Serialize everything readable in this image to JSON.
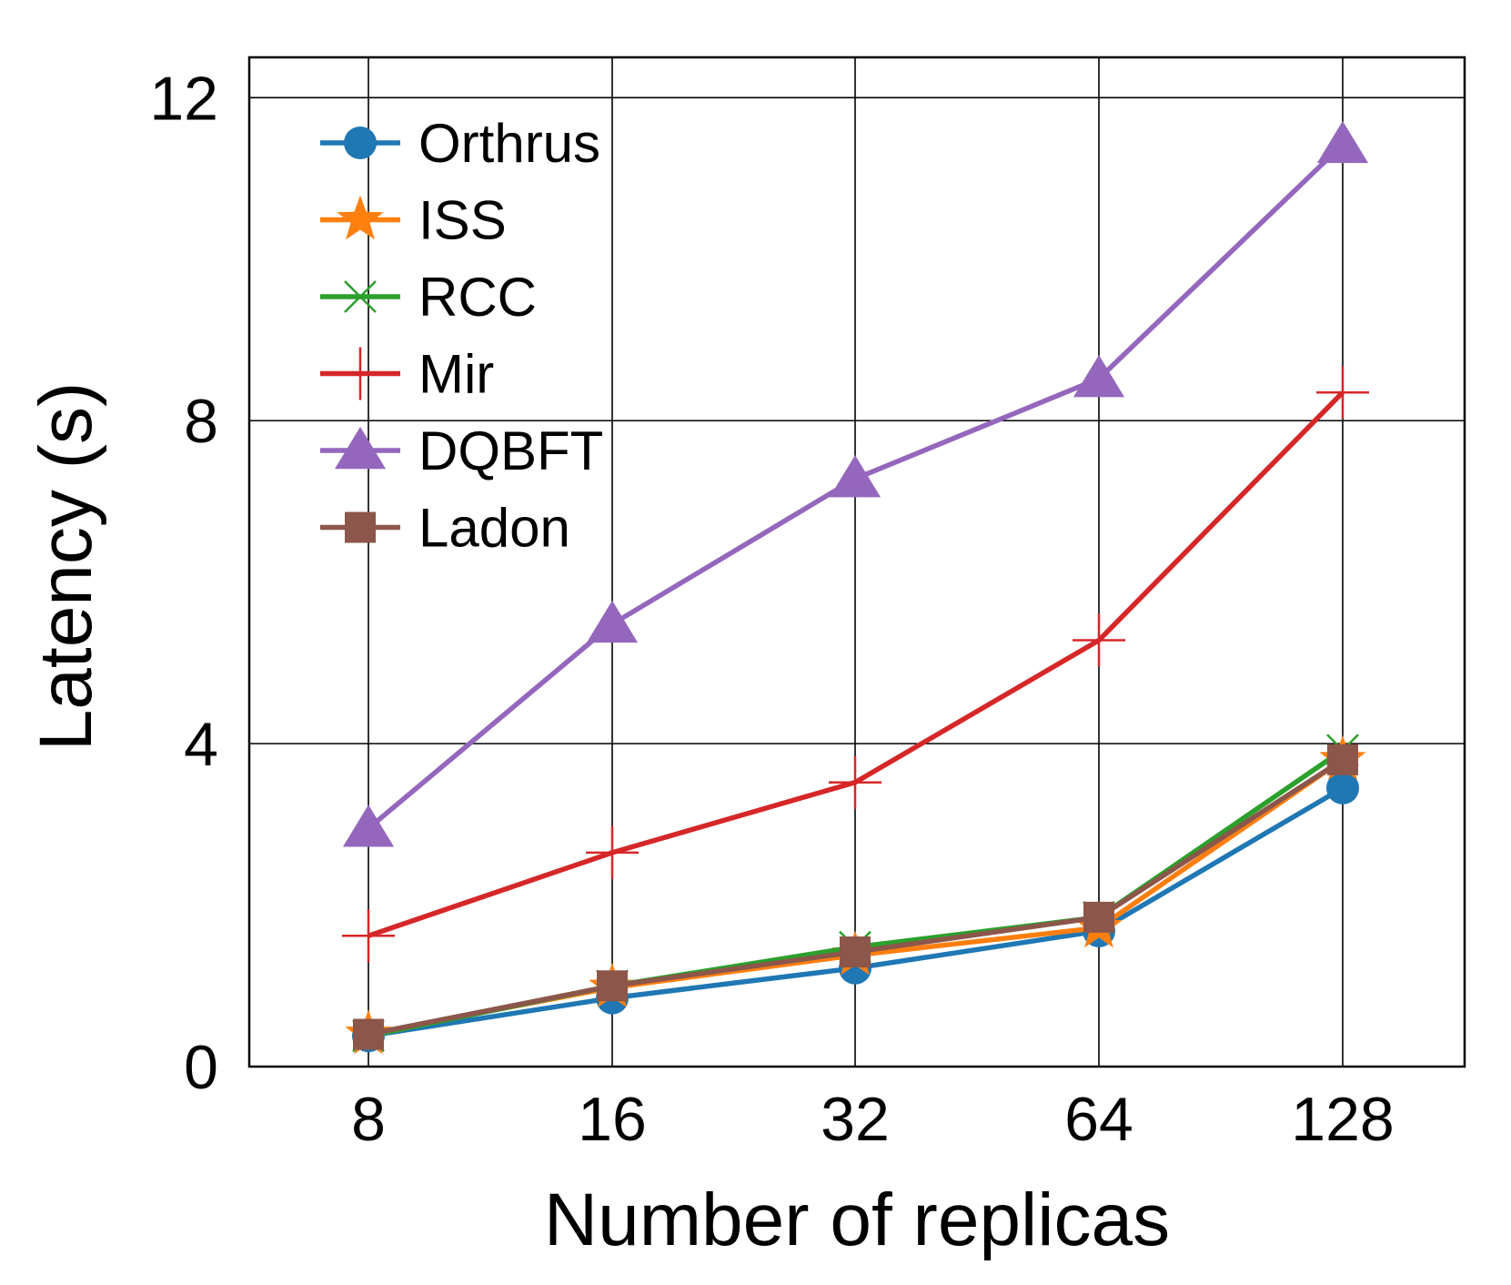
{
  "chart_data": {
    "type": "line",
    "title": "",
    "xlabel": "Number of replicas",
    "ylabel": "Latency (s)",
    "categories": [
      "8",
      "16",
      "32",
      "64",
      "128"
    ],
    "ylim": [
      0,
      12.5
    ],
    "yticks": [
      "0",
      "4",
      "8",
      "12"
    ],
    "ytick_values": [
      0,
      4,
      8,
      12
    ],
    "grid": true,
    "legend_position": "upper-left",
    "series": [
      {
        "name": "Orthrus",
        "color": "#1f77b4",
        "marker": "circle",
        "values": [
          0.38,
          0.85,
          1.22,
          1.68,
          3.45
        ]
      },
      {
        "name": "ISS",
        "color": "#ff7f0e",
        "marker": "star",
        "values": [
          0.4,
          0.98,
          1.38,
          1.72,
          3.8
        ]
      },
      {
        "name": "RCC",
        "color": "#2ca02c",
        "marker": "x",
        "values": [
          0.38,
          1.0,
          1.48,
          1.85,
          3.92
        ]
      },
      {
        "name": "Mir",
        "color": "#d62728",
        "marker": "plus",
        "values": [
          1.62,
          2.65,
          3.52,
          5.28,
          8.35
        ]
      },
      {
        "name": "DQBFT",
        "color": "#9467bd",
        "marker": "triangle",
        "values": [
          2.95,
          5.48,
          7.28,
          8.52,
          11.42
        ]
      },
      {
        "name": "Ladon",
        "color": "#8c564b",
        "marker": "square",
        "values": [
          0.4,
          1.0,
          1.42,
          1.85,
          3.8
        ]
      }
    ]
  }
}
